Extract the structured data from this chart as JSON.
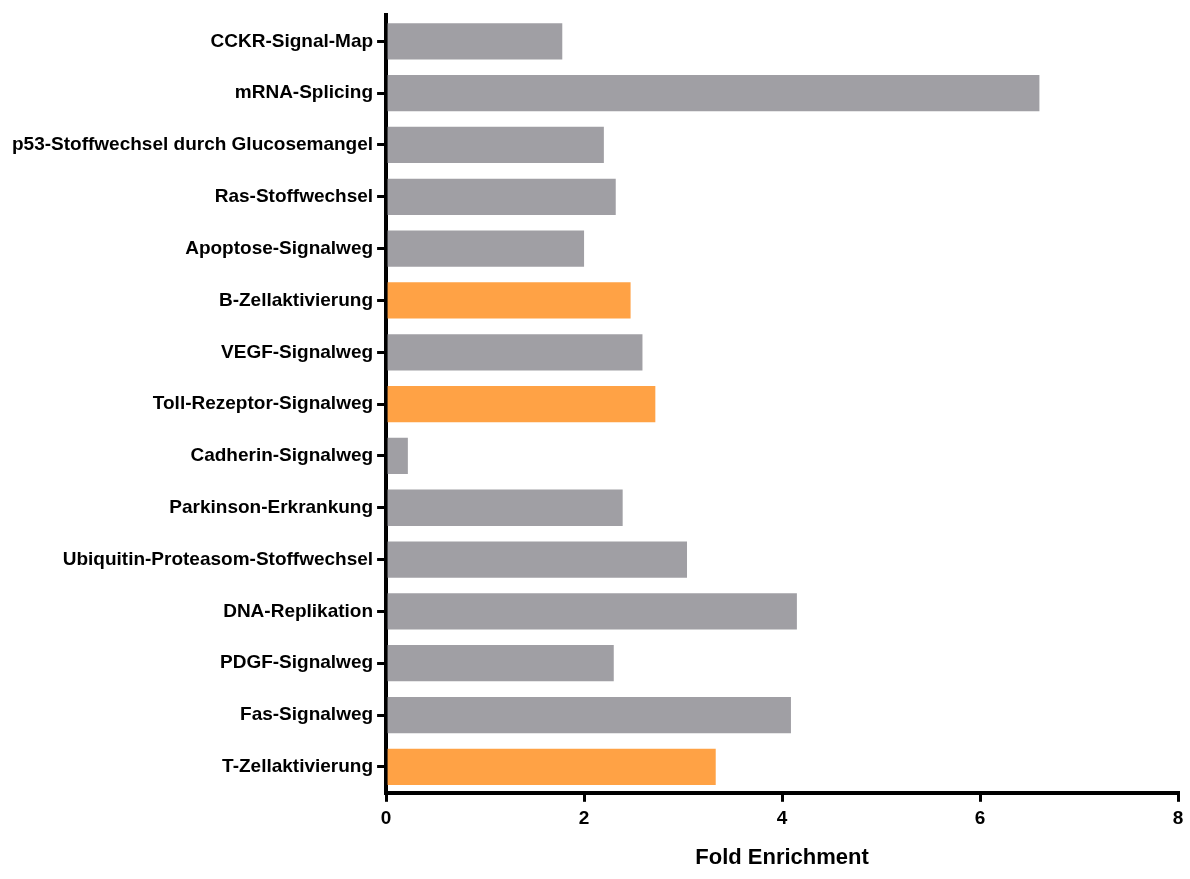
{
  "chart_data": {
    "type": "bar",
    "orientation": "horizontal",
    "xlabel": "Fold Enrichment",
    "categories": [
      "CCKR-Signal-Map",
      "mRNA-Splicing",
      "p53-Stoffwechsel durch Glucosemangel",
      "Ras-Stoffwechsel",
      "Apoptose-Signalweg",
      "B-Zellaktivierung",
      "VEGF-Signalweg",
      "Toll-Rezeptor-Signalweg",
      "Cadherin-Signalweg",
      "Parkinson-Erkrankung",
      "Ubiquitin-Proteasom-Stoffwechsel",
      "DNA-Replikation",
      "PDGF-Signalweg",
      "Fas-Signalweg",
      "T-Zellaktivierung"
    ],
    "values": [
      1.78,
      6.6,
      2.2,
      2.32,
      2.0,
      2.47,
      2.59,
      2.72,
      0.22,
      2.39,
      3.04,
      4.15,
      2.3,
      4.09,
      3.33
    ],
    "colors": [
      "#a09fa4",
      "#a09fa4",
      "#a09fa4",
      "#a09fa4",
      "#a09fa4",
      "#ffa245",
      "#a09fa4",
      "#ffa245",
      "#a09fa4",
      "#a09fa4",
      "#a09fa4",
      "#a09fa4",
      "#a09fa4",
      "#a09fa4",
      "#ffa245"
    ],
    "xlim": [
      0,
      8
    ],
    "xticks": [
      0,
      2,
      4,
      6,
      8
    ],
    "grid": false,
    "legend": false
  }
}
